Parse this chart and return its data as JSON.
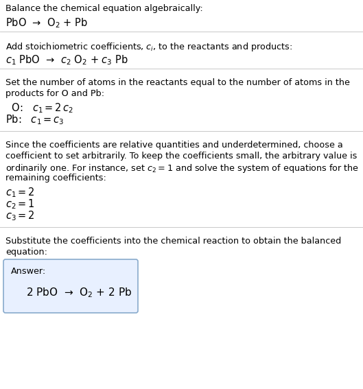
{
  "bg_color": "#ffffff",
  "text_color": "#000000",
  "line_color": "#c8c8c8",
  "title_text": "Balance the chemical equation algebraically:",
  "equation_line": "PbO  →  O$_2$ + Pb",
  "section2_header": "Add stoichiometric coefficients, $c_i$, to the reactants and products:",
  "section2_eq": "$c_1$ PbO  →  $c_2$ O$_2$ + $c_3$ Pb",
  "section3_header_1": "Set the number of atoms in the reactants equal to the number of atoms in the",
  "section3_header_2": "products for O and Pb:",
  "section3_O": " O:   $c_1 = 2\\,c_2$",
  "section3_Pb": "Pb:   $c_1 = c_3$",
  "section4_header_1": "Since the coefficients are relative quantities and underdetermined, choose a",
  "section4_header_2": "coefficient to set arbitrarily. To keep the coefficients small, the arbitrary value is",
  "section4_header_3": "ordinarily one. For instance, set $c_2 = 1$ and solve the system of equations for the",
  "section4_header_4": "remaining coefficients:",
  "section4_c1": "$c_1 = 2$",
  "section4_c2": "$c_2 = 1$",
  "section4_c3": "$c_3 = 2$",
  "section5_header_1": "Substitute the coefficients into the chemical reaction to obtain the balanced",
  "section5_header_2": "equation:",
  "answer_label": "Answer:",
  "answer_eq": "2 PbO  →  O$_2$ + 2 Pb",
  "figsize": [
    5.29,
    5.67
  ],
  "dpi": 100,
  "fs_body": 9.2,
  "fs_eq": 10.5,
  "fs_answer": 11.0
}
